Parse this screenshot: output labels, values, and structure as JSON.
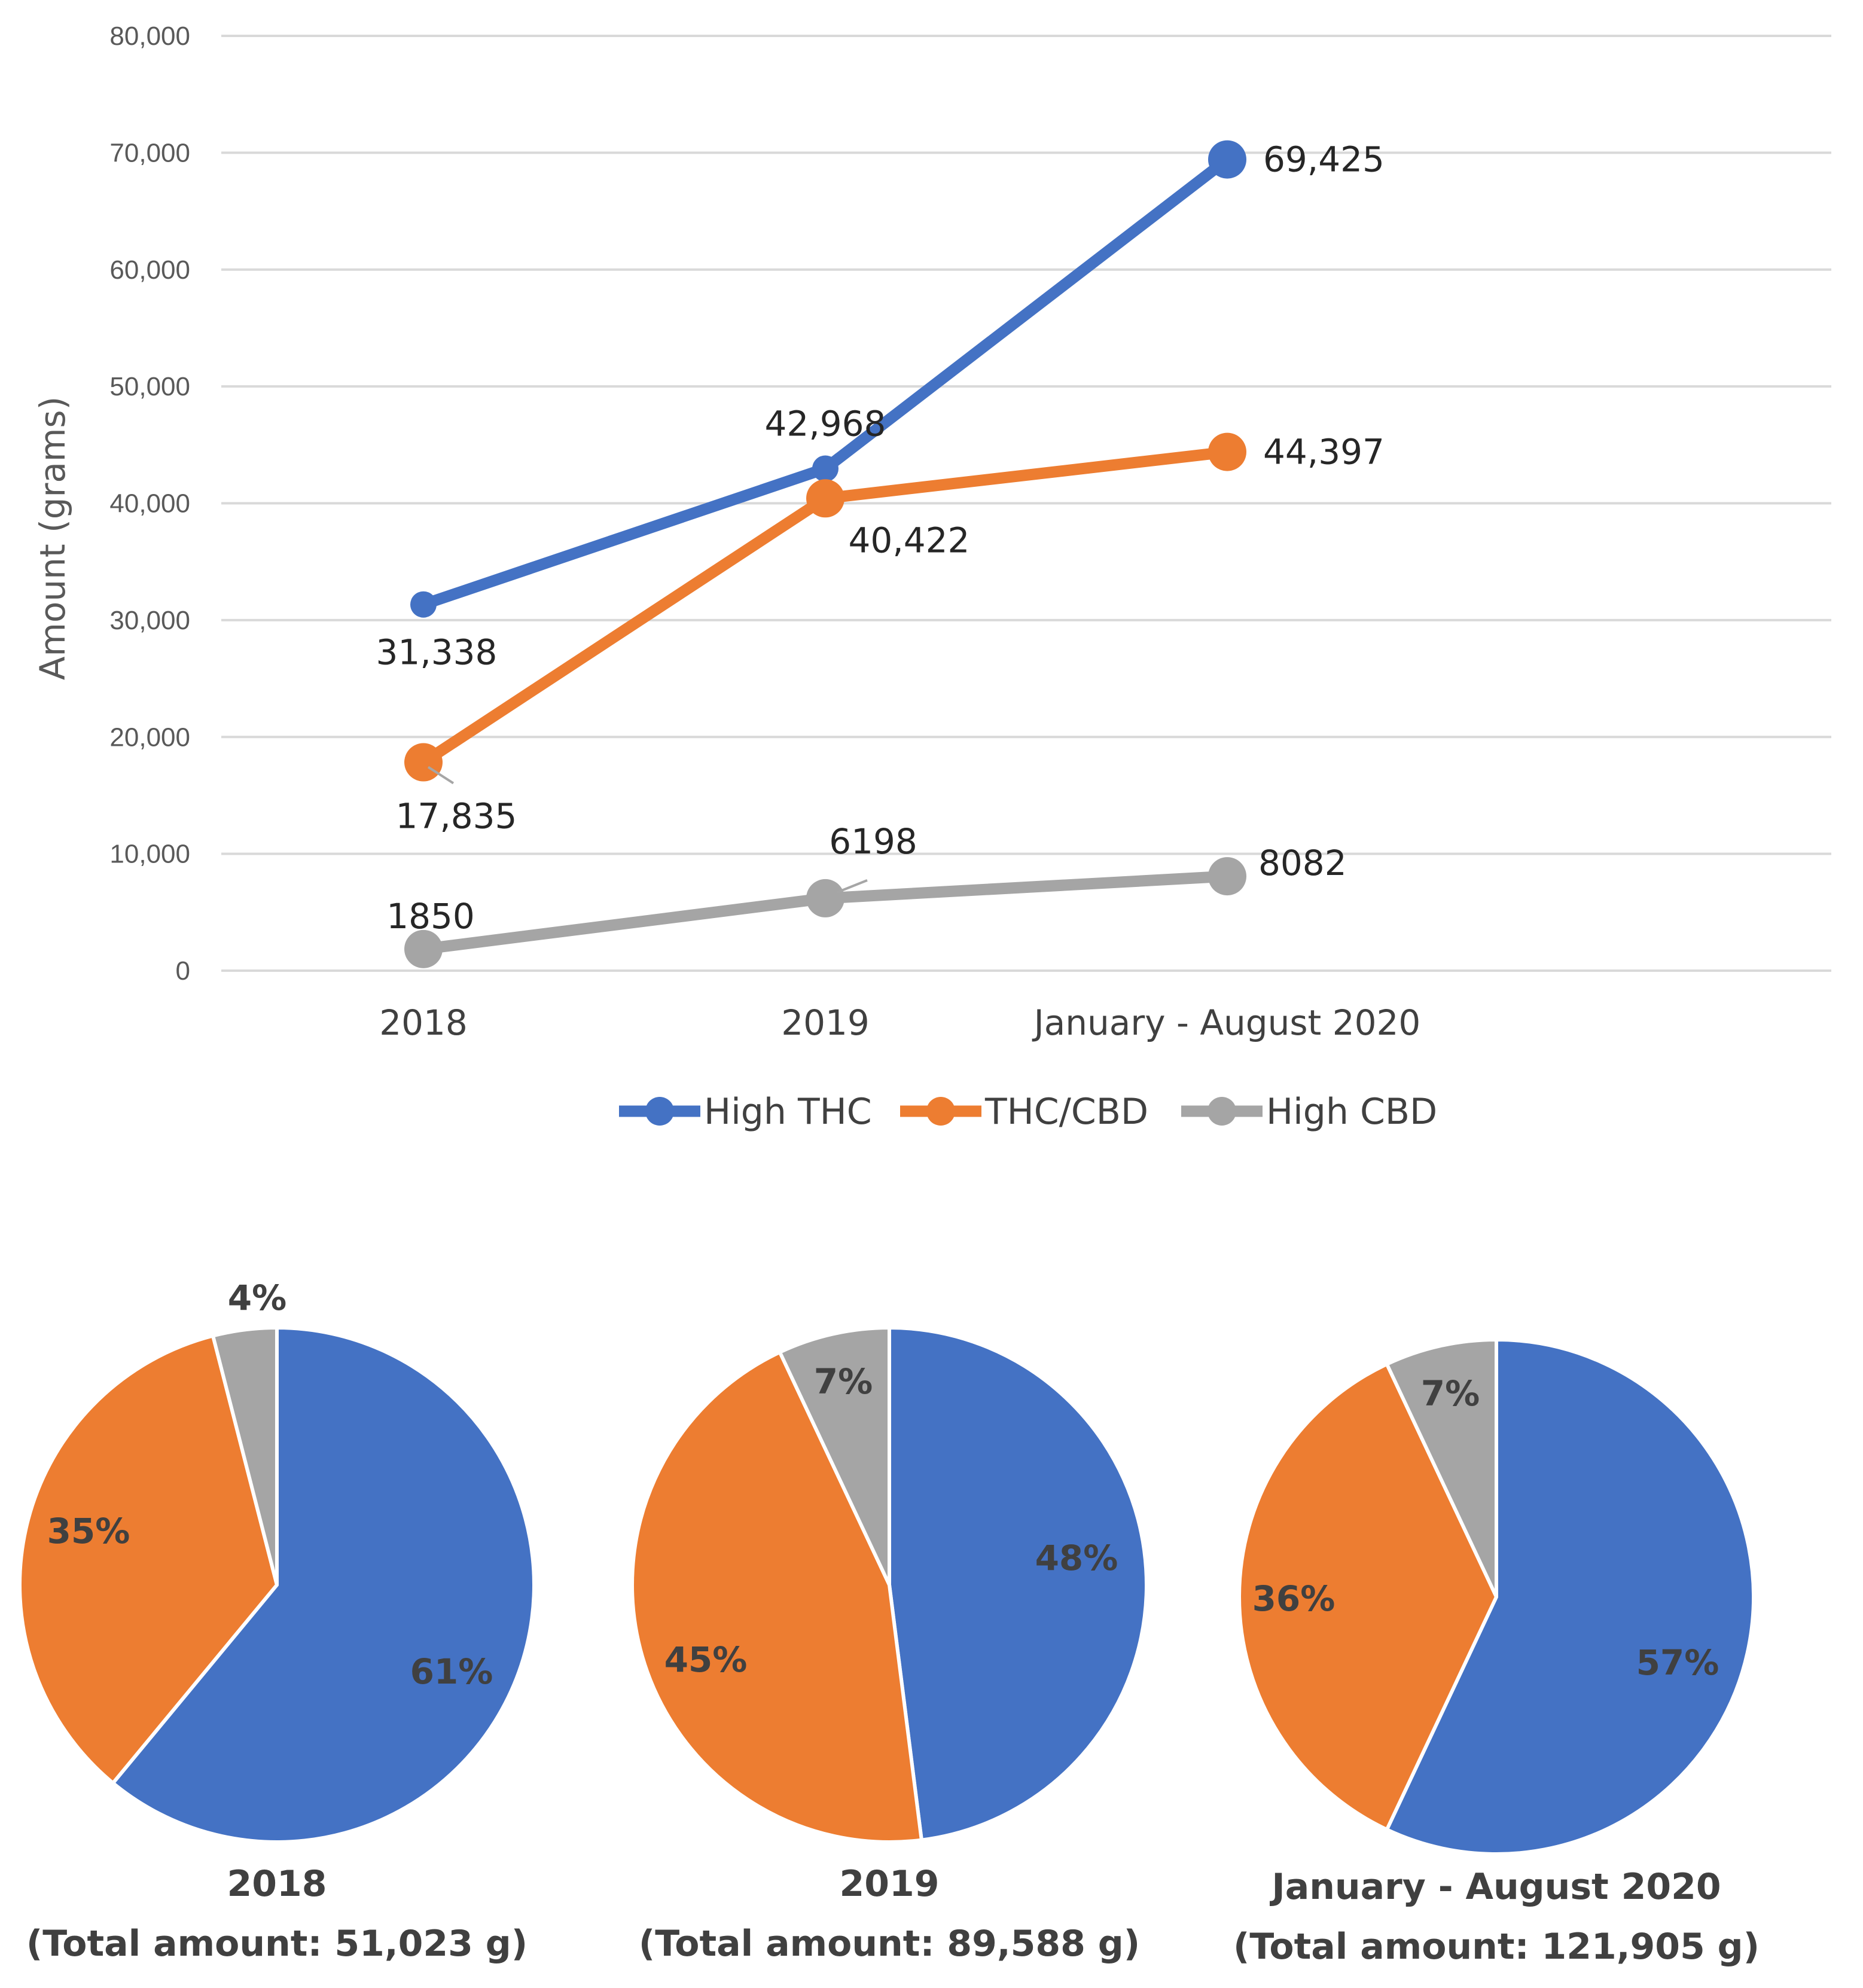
{
  "chart_data": [
    {
      "type": "line",
      "title": "",
      "xlabel": "",
      "ylabel": "Amount (grams)",
      "ylim": [
        0,
        80000
      ],
      "yticks": [
        "0",
        "10,000",
        "20,000",
        "30,000",
        "40,000",
        "50,000",
        "60,000",
        "70,000",
        "80,000"
      ],
      "categories": [
        "2018",
        "2019",
        "January - August 2020"
      ],
      "grid": true,
      "legend_position": "bottom",
      "series": [
        {
          "name": "High THC",
          "color": "#4472C4",
          "values": [
            31338,
            42968,
            69425
          ],
          "labels": [
            "31,338",
            "42,968",
            "69,425"
          ]
        },
        {
          "name": "THC/CBD",
          "color": "#ED7D31",
          "values": [
            17835,
            40422,
            44397
          ],
          "labels": [
            "17,835",
            "40,422",
            "44,397"
          ]
        },
        {
          "name": "High CBD",
          "color": "#A5A5A5",
          "values": [
            1850,
            6198,
            8082
          ],
          "labels": [
            "1850",
            "6198",
            "8082"
          ]
        }
      ]
    },
    {
      "type": "pie",
      "title_line1": "2018",
      "title_line2": "(Total amount: 51,023 g)",
      "slices": [
        {
          "name": "High THC",
          "value": 61,
          "label": "61%",
          "color": "#4472C4"
        },
        {
          "name": "THC/CBD",
          "value": 35,
          "label": "35%",
          "color": "#ED7D31"
        },
        {
          "name": "High CBD",
          "value": 4,
          "label": "4%",
          "color": "#A5A5A5"
        }
      ]
    },
    {
      "type": "pie",
      "title_line1": "2019",
      "title_line2": "(Total amount: 89,588 g)",
      "slices": [
        {
          "name": "High THC",
          "value": 48,
          "label": "48%",
          "color": "#4472C4"
        },
        {
          "name": "THC/CBD",
          "value": 45,
          "label": "45%",
          "color": "#ED7D31"
        },
        {
          "name": "High CBD",
          "value": 7,
          "label": "7%",
          "color": "#A5A5A5"
        }
      ]
    },
    {
      "type": "pie",
      "title_line1": "January - August 2020",
      "title_line2": "(Total amount: 121,905 g)",
      "slices": [
        {
          "name": "High THC",
          "value": 57,
          "label": "57%",
          "color": "#4472C4"
        },
        {
          "name": "THC/CBD",
          "value": 36,
          "label": "36%",
          "color": "#ED7D31"
        },
        {
          "name": "High CBD",
          "value": 7,
          "label": "7%",
          "color": "#A5A5A5"
        }
      ]
    }
  ]
}
